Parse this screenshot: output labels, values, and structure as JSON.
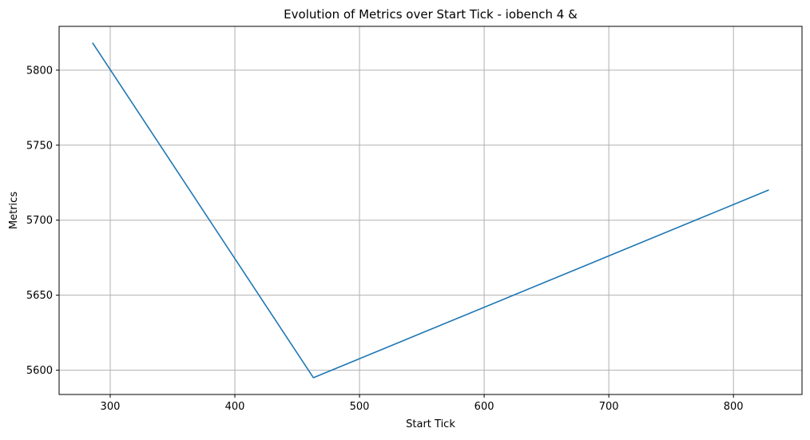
{
  "chart_data": {
    "type": "line",
    "title": "Evolution of Metrics over Start Tick - iobench 4 &",
    "xlabel": "Start Tick",
    "ylabel": "Metrics",
    "x": [
      286,
      463,
      828
    ],
    "series": [
      {
        "values": [
          5818,
          5595,
          5720
        ],
        "color": "#1f77b4"
      }
    ],
    "xlim": [
      259,
      855
    ],
    "ylim": [
      5583.8,
      5829.2
    ],
    "x_ticks": [
      300,
      400,
      500,
      600,
      700,
      800
    ],
    "y_ticks": [
      5600,
      5650,
      5700,
      5750,
      5800
    ],
    "grid": true,
    "grid_color": "#b0b0b0",
    "axis_color": "#000000"
  }
}
